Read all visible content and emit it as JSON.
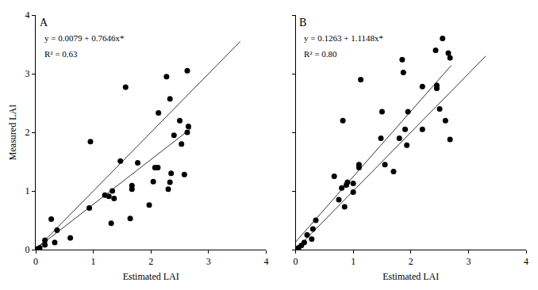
{
  "chart_data": [
    {
      "type": "scatter",
      "panel": "A",
      "annotations": [
        "y = 0.0079 + 0.7646x*",
        "R² = 0.63"
      ],
      "x_label": "Estimated LAI",
      "y_label": "Measured LAI",
      "xlim": [
        0,
        4
      ],
      "ylim": [
        0,
        4
      ],
      "xticks": [
        0,
        1,
        2,
        3,
        4
      ],
      "yticks": [
        0,
        1,
        2,
        3,
        4
      ],
      "grid": false,
      "series": [
        {
          "type": "scatter",
          "marker": "circle",
          "color": "#000000",
          "x": [
            0.03,
            0.07,
            0.16,
            0.16,
            0.27,
            0.37,
            0.33,
            0.6,
            0.93,
            0.95,
            1.2,
            1.27,
            1.33,
            1.36,
            1.31,
            1.47,
            1.56,
            1.64,
            1.67,
            1.67,
            1.77,
            1.97,
            2.04,
            2.07,
            2.13,
            2.27,
            2.33,
            2.33,
            2.3,
            2.35,
            2.4,
            2.5,
            2.53,
            2.58,
            2.63,
            2.65,
            2.63,
            2.12
          ],
          "values": [
            0.01,
            0.03,
            0.16,
            0.08,
            0.52,
            0.33,
            0.12,
            0.2,
            0.71,
            1.84,
            0.93,
            0.91,
            1.0,
            0.87,
            0.45,
            1.51,
            2.77,
            0.53,
            1.09,
            1.03,
            1.48,
            0.76,
            1.16,
            1.4,
            2.33,
            2.95,
            2.57,
            1.15,
            1.03,
            1.3,
            1.95,
            2.2,
            1.8,
            1.28,
            3.05,
            2.1,
            2.0,
            1.4
          ]
        },
        {
          "type": "line",
          "line_style": "solid",
          "color": "#000000",
          "x": [
            0,
            3.55
          ],
          "values": [
            0,
            3.55
          ]
        },
        {
          "type": "line",
          "line_style": "solid",
          "color": "#000000",
          "x": [
            0,
            2.7
          ],
          "values": [
            0.01,
            2.07
          ]
        }
      ]
    },
    {
      "type": "scatter",
      "panel": "B",
      "annotations": [
        "y = 0.1263 + 1.1148x*",
        "R² = 0.80"
      ],
      "x_label": "Estimated LAI",
      "xlim": [
        0,
        4
      ],
      "ylim": [
        0,
        4
      ],
      "xticks": [
        0,
        1,
        2,
        3,
        4
      ],
      "yticks": [
        0,
        1,
        2,
        3,
        4
      ],
      "grid": false,
      "tick_labels": "x",
      "series": [
        {
          "type": "scatter",
          "marker": "circle",
          "color": "#000000",
          "x": [
            0.02,
            0.05,
            0.1,
            0.15,
            0.2,
            0.28,
            0.3,
            0.35,
            0.67,
            0.75,
            0.8,
            0.85,
            0.82,
            0.88,
            0.9,
            1.0,
            1.0,
            1.1,
            1.1,
            1.13,
            1.48,
            1.5,
            1.55,
            1.7,
            1.8,
            1.85,
            1.87,
            1.9,
            1.95,
            1.93,
            2.2,
            2.2,
            2.45,
            2.45,
            2.5,
            2.43,
            2.55,
            2.6,
            2.65,
            2.68,
            2.68
          ],
          "values": [
            0.01,
            0.03,
            0.07,
            0.12,
            0.25,
            0.18,
            0.35,
            0.5,
            1.25,
            0.85,
            1.05,
            0.73,
            2.2,
            1.1,
            1.15,
            1.13,
            0.98,
            1.45,
            1.4,
            2.9,
            1.9,
            2.35,
            1.45,
            1.33,
            1.9,
            3.24,
            3.02,
            2.05,
            2.35,
            1.78,
            2.05,
            2.78,
            2.75,
            2.8,
            2.4,
            3.4,
            3.6,
            2.2,
            3.35,
            3.27,
            1.88
          ]
        },
        {
          "type": "line",
          "line_style": "solid",
          "color": "#000000",
          "x": [
            0,
            3.3
          ],
          "values": [
            0,
            3.3
          ]
        },
        {
          "type": "line",
          "line_style": "solid",
          "color": "#000000",
          "x": [
            0,
            2.7
          ],
          "values": [
            0.13,
            3.14
          ]
        }
      ]
    }
  ]
}
